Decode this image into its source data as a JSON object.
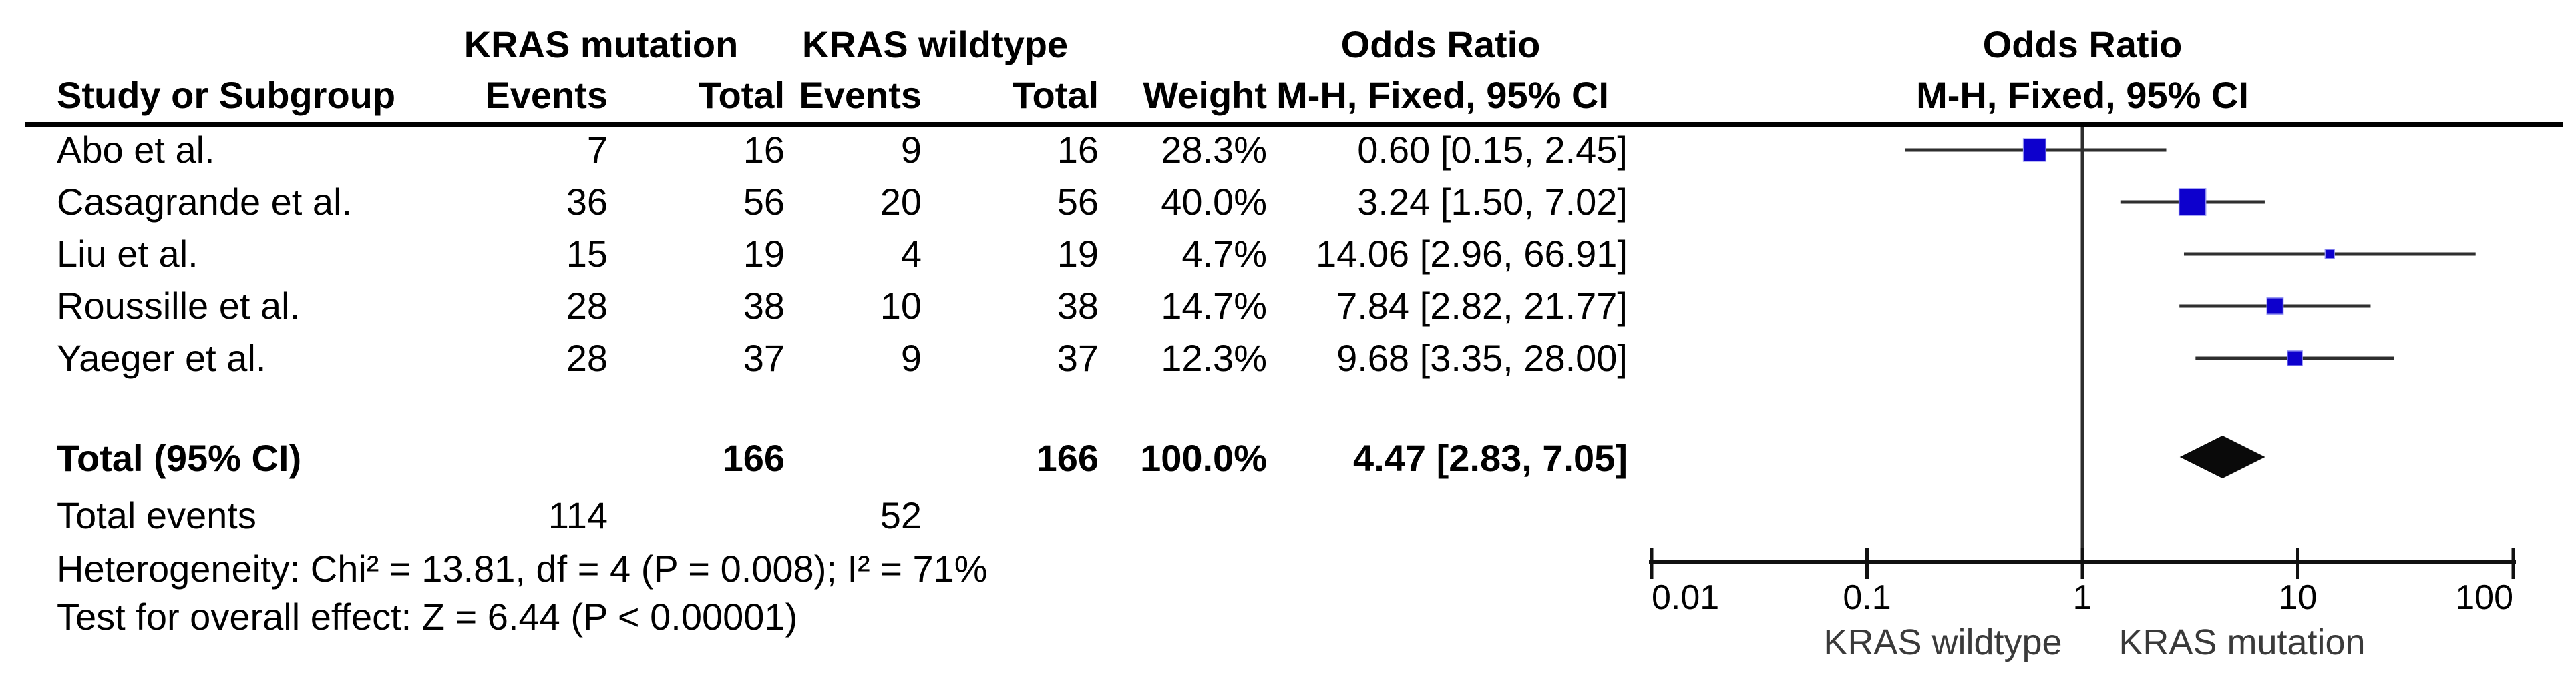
{
  "table": {
    "group1_header": "KRAS mutation",
    "group2_header": "KRAS wildtype",
    "or_header": "Odds Ratio",
    "or_subheader": "M-H, Fixed, 95% CI",
    "study_header": "Study or Subgroup",
    "events_header": "Events",
    "total_header": "Total",
    "weight_header": "Weight",
    "rows": [
      {
        "study": "Abo et al.",
        "e1": "7",
        "t1": "16",
        "e2": "9",
        "t2": "16",
        "weight": "28.3%",
        "or_ci": "0.60 [0.15, 2.45]"
      },
      {
        "study": "Casagrande et al.",
        "e1": "36",
        "t1": "56",
        "e2": "20",
        "t2": "56",
        "weight": "40.0%",
        "or_ci": "3.24 [1.50, 7.02]"
      },
      {
        "study": "Liu et al.",
        "e1": "15",
        "t1": "19",
        "e2": "4",
        "t2": "19",
        "weight": "4.7%",
        "or_ci": "14.06 [2.96, 66.91]"
      },
      {
        "study": "Roussille et al.",
        "e1": "28",
        "t1": "38",
        "e2": "10",
        "t2": "38",
        "weight": "14.7%",
        "or_ci": "7.84 [2.82, 21.77]"
      },
      {
        "study": "Yaeger et al.",
        "e1": "28",
        "t1": "37",
        "e2": "9",
        "t2": "37",
        "weight": "12.3%",
        "or_ci": "9.68 [3.35, 28.00]"
      }
    ],
    "total_row": {
      "label": "Total (95% CI)",
      "t1": "166",
      "t2": "166",
      "weight": "100.0%",
      "or_ci": "4.47 [2.83, 7.05]"
    },
    "total_events_label": "Total events",
    "total_events_e1": "114",
    "total_events_e2": "52",
    "heterogeneity_line": "Heterogeneity: Chi² = 13.81, df = 4 (P = 0.008); I² = 71%",
    "overall_effect_line": "Test for overall effect: Z = 6.44 (P < 0.00001)"
  },
  "chart_data": {
    "type": "forest",
    "title": "Odds Ratio",
    "subtitle": "M-H, Fixed, 95% CI",
    "effect_measure": "Odds Ratio",
    "method": "Mantel-Haenszel, Fixed effect, 95% CI",
    "x_scale": "log10",
    "x_min": 0.01,
    "x_max": 100,
    "x_ticks": [
      0.01,
      0.1,
      1,
      10,
      100
    ],
    "x_tick_labels": [
      "0.01",
      "0.1",
      "1",
      "10",
      "100"
    ],
    "null_line": 1,
    "favours_left_label": "KRAS wildtype",
    "favours_right_label": "KRAS mutation",
    "studies": [
      {
        "name": "Abo et al.",
        "or": 0.6,
        "ci_low": 0.15,
        "ci_high": 2.45,
        "weight_pct": 28.3
      },
      {
        "name": "Casagrande et al.",
        "or": 3.24,
        "ci_low": 1.5,
        "ci_high": 7.02,
        "weight_pct": 40.0
      },
      {
        "name": "Liu et al.",
        "or": 14.06,
        "ci_low": 2.96,
        "ci_high": 66.91,
        "weight_pct": 4.7
      },
      {
        "name": "Roussille et al.",
        "or": 7.84,
        "ci_low": 2.82,
        "ci_high": 21.77,
        "weight_pct": 14.7
      },
      {
        "name": "Yaeger et al.",
        "or": 9.68,
        "ci_low": 3.35,
        "ci_high": 28.0,
        "weight_pct": 12.3
      }
    ],
    "total": {
      "name": "Total (95% CI)",
      "or": 4.47,
      "ci_low": 2.83,
      "ci_high": 7.05,
      "weight_pct": 100.0
    }
  },
  "colors": {
    "square_fill": "#0D00CD",
    "square_edge": "#8c8cf0",
    "ci_line": "#2e2e2e",
    "diamond_fill": "#0a0a0a",
    "axis": "#111111",
    "caption_text": "#3a3a3a",
    "text": "#000000"
  }
}
